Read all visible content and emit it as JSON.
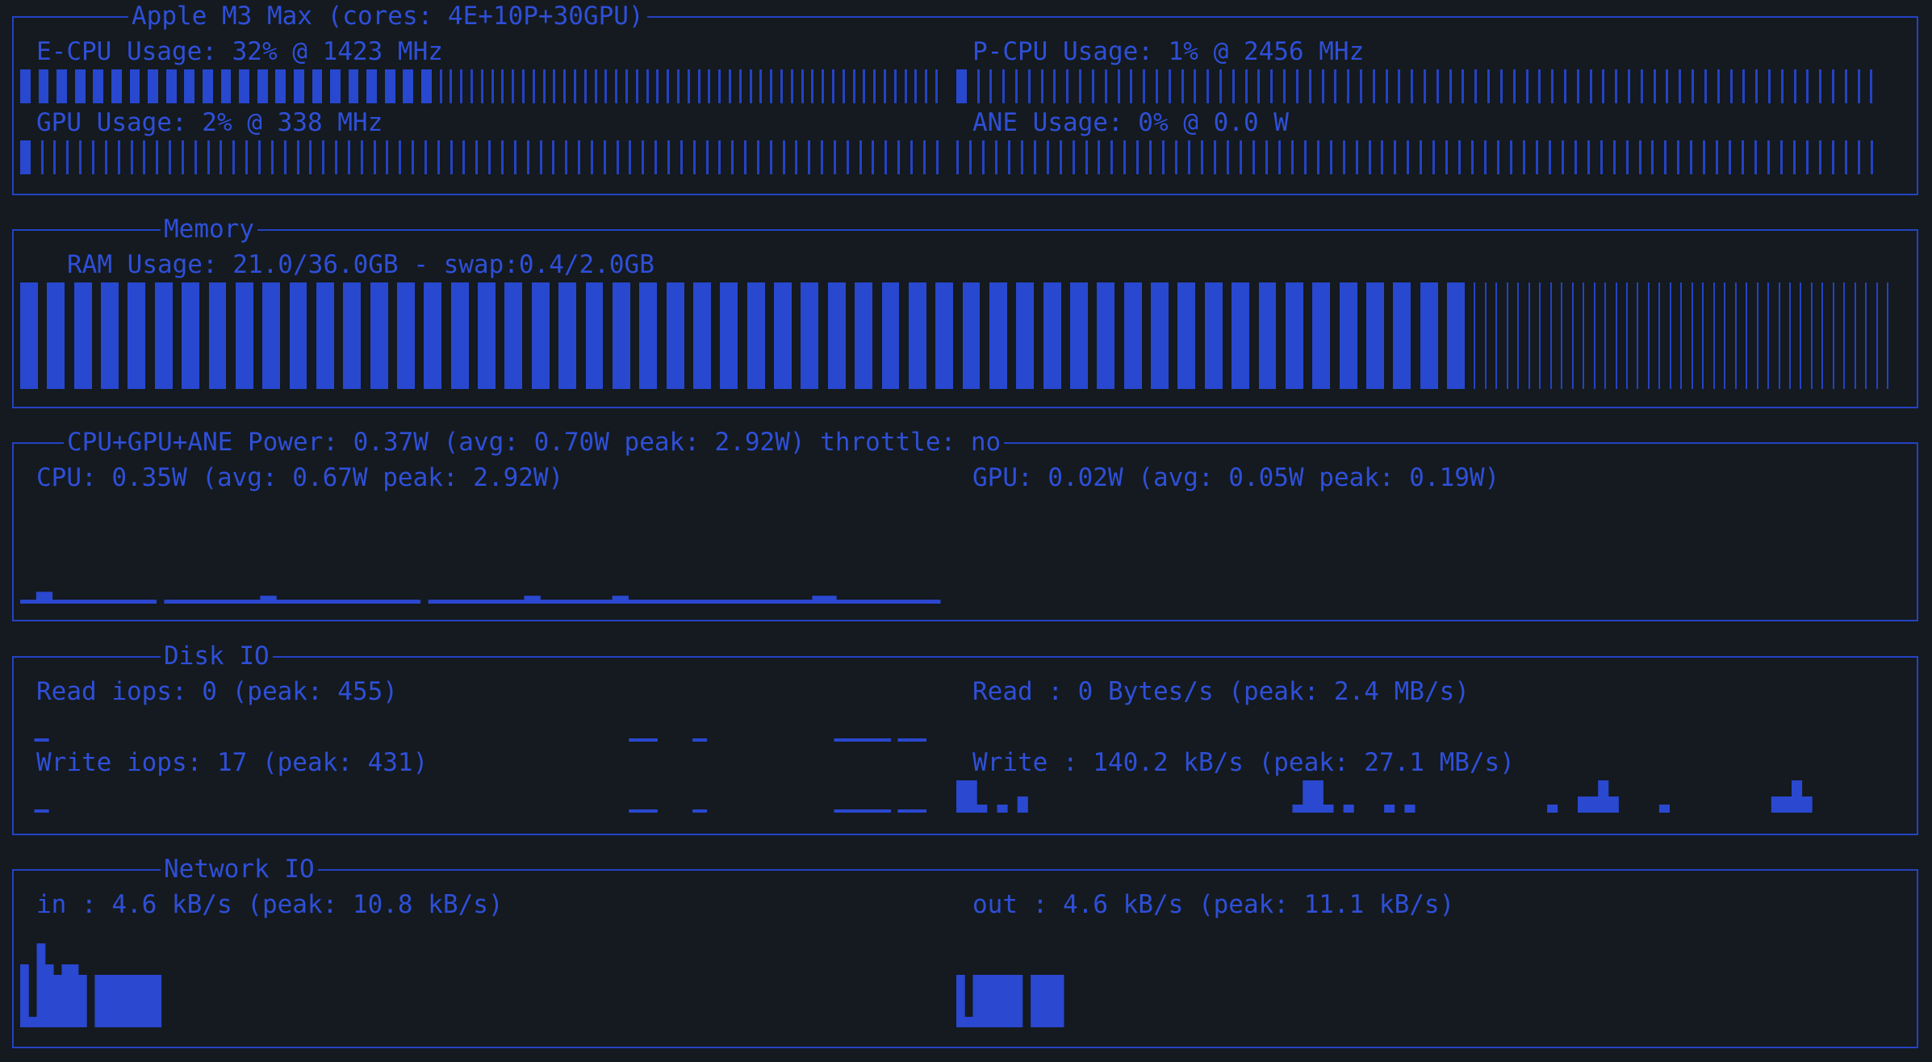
{
  "colors": {
    "background": "#141a1f",
    "accent": "#2a48d0",
    "border": "#2542c4"
  },
  "processor": {
    "title": "Apple M3 Max (cores: 4E+10P+30GPU)",
    "ecpu": {
      "label": "E-CPU Usage: 32% @ 1423 MHz",
      "usage": 0.32
    },
    "pcpu": {
      "label": "P-CPU Usage: 1% @ 2456 MHz",
      "usage": 0.01
    },
    "gpu": {
      "label": "GPU Usage: 2% @ 338 MHz",
      "usage": 0.02
    },
    "ane": {
      "label": "ANE Usage: 0% @ 0.0 W",
      "usage": 0.0
    }
  },
  "memory": {
    "title": "Memory",
    "ram": {
      "label": "RAM Usage: 21.0/36.0GB - swap:0.4/2.0GB",
      "usage": 0.583
    }
  },
  "power": {
    "title": "CPU+GPU+ANE Power: 0.37W (avg: 0.70W peak: 2.92W) throttle: no",
    "cpu": {
      "label": "CPU: 0.35W (avg: 0.67W peak: 2.92W)"
    },
    "gpu": {
      "label": "GPU: 0.02W (avg: 0.05W peak: 0.19W)"
    }
  },
  "disk": {
    "title": "Disk IO",
    "read_iops": {
      "label": "Read iops: 0 (peak: 455)"
    },
    "write_iops": {
      "label": "Write iops: 17 (peak: 431)"
    },
    "read_bw": {
      "label": "Read : 0 Bytes/s (peak: 2.4 MB/s)"
    },
    "write_bw": {
      "label": "Write : 140.2 kB/s (peak: 27.1 MB/s)"
    }
  },
  "network": {
    "title": "Network IO",
    "in": {
      "label": "in : 4.6 kB/s (peak: 10.8 kB/s)"
    },
    "out": {
      "label": "out : 4.6 kB/s (peak: 11.1 kB/s)"
    }
  },
  "series": {
    "cpu_power": [
      1,
      1,
      3,
      3,
      1,
      1,
      1,
      1,
      1,
      1,
      1,
      1,
      1,
      1,
      1,
      1,
      1,
      0,
      1,
      1,
      1,
      1,
      1,
      1,
      1,
      1,
      1,
      1,
      1,
      1,
      2,
      2,
      1,
      1,
      1,
      1,
      1,
      1,
      1,
      1,
      1,
      1,
      1,
      1,
      1,
      1,
      1,
      1,
      1,
      1,
      0,
      1,
      1,
      1,
      1,
      1,
      1,
      1,
      1,
      1,
      1,
      1,
      1,
      2,
      2,
      1,
      1,
      1,
      1,
      1,
      1,
      1,
      1,
      1,
      2,
      2,
      1,
      1,
      1,
      1,
      1,
      1,
      1,
      1,
      1,
      1,
      1,
      1,
      1,
      1,
      1,
      1,
      1,
      1,
      1,
      1,
      1,
      1,
      1,
      2,
      2,
      2,
      1,
      1,
      1,
      1,
      1,
      1,
      1,
      1,
      1,
      1,
      1,
      1,
      1
    ],
    "read_iops": [
      0,
      0,
      1,
      1,
      0,
      0,
      0,
      0,
      0,
      0,
      0,
      0,
      0,
      0,
      0,
      0,
      0,
      0,
      0,
      0,
      0,
      0,
      0,
      0,
      0,
      0,
      0,
      0,
      0,
      0,
      0,
      0,
      0,
      0,
      0,
      0,
      0,
      0,
      0,
      0,
      0,
      0,
      0,
      0,
      0,
      0,
      0,
      0,
      0,
      0,
      0,
      0,
      0,
      0,
      0,
      0,
      0,
      0,
      0,
      0,
      0,
      0,
      0,
      0,
      0,
      0,
      0,
      0,
      0,
      0,
      0,
      0,
      0,
      0,
      0,
      0,
      0,
      0,
      0,
      0,
      0,
      0,
      0,
      0,
      0,
      0,
      1,
      1,
      1,
      1,
      0,
      0,
      0,
      0,
      0,
      1,
      1,
      0,
      0,
      0,
      0,
      0,
      0,
      0,
      0,
      0,
      0,
      0,
      0,
      0,
      0,
      0,
      0,
      0,
      0,
      1,
      1,
      1,
      1,
      1,
      1,
      1,
      1,
      0,
      1,
      1,
      1,
      1,
      0,
      0
    ],
    "write_iops": [
      0,
      0,
      1,
      1,
      0,
      0,
      0,
      0,
      0,
      0,
      0,
      0,
      0,
      0,
      0,
      0,
      0,
      0,
      0,
      0,
      0,
      0,
      0,
      0,
      0,
      0,
      0,
      0,
      0,
      0,
      0,
      0,
      0,
      0,
      0,
      0,
      0,
      0,
      0,
      0,
      0,
      0,
      0,
      0,
      0,
      0,
      0,
      0,
      0,
      0,
      0,
      0,
      0,
      0,
      0,
      0,
      0,
      0,
      0,
      0,
      0,
      0,
      0,
      0,
      0,
      0,
      0,
      0,
      0,
      0,
      0,
      0,
      0,
      0,
      0,
      0,
      0,
      0,
      0,
      0,
      0,
      0,
      0,
      0,
      0,
      0,
      1,
      1,
      1,
      1,
      0,
      0,
      0,
      0,
      0,
      1,
      1,
      0,
      0,
      0,
      0,
      0,
      0,
      0,
      0,
      0,
      0,
      0,
      0,
      0,
      0,
      0,
      0,
      0,
      0,
      1,
      1,
      1,
      1,
      1,
      1,
      1,
      1,
      0,
      1,
      1,
      1,
      1,
      0,
      0
    ],
    "read_bw": [
      0,
      0,
      0,
      0,
      0,
      0,
      0,
      0,
      0,
      0,
      0,
      0,
      0,
      0,
      0,
      0,
      0,
      0,
      0,
      0,
      0,
      0,
      0,
      0,
      0,
      0,
      0,
      0,
      0,
      0,
      0,
      0,
      0,
      0,
      0,
      0,
      0,
      0,
      0,
      0,
      0,
      0,
      0,
      0,
      0,
      0,
      0,
      0,
      0,
      0,
      0,
      0,
      0,
      0,
      0,
      0,
      0,
      0,
      0,
      0,
      0,
      0,
      0,
      0,
      0,
      0,
      0,
      0,
      0,
      0,
      0,
      0,
      0,
      0,
      0,
      0,
      0,
      0,
      0,
      0,
      0,
      0,
      0,
      0,
      0,
      0,
      0,
      0,
      0,
      0,
      0,
      0,
      0,
      0,
      0,
      0,
      0,
      0,
      0,
      0,
      0,
      0,
      0,
      0,
      0,
      0,
      0,
      0,
      0,
      0,
      0,
      0,
      0,
      0,
      0,
      0
    ],
    "write_bw": [
      4,
      4,
      1,
      0,
      1,
      0,
      2,
      0,
      0,
      0,
      0,
      0,
      0,
      0,
      0,
      0,
      0,
      0,
      0,
      0,
      0,
      0,
      0,
      0,
      0,
      0,
      0,
      0,
      0,
      0,
      0,
      0,
      0,
      1,
      4,
      4,
      1,
      0,
      1,
      0,
      0,
      0,
      1,
      0,
      1,
      0,
      0,
      0,
      0,
      0,
      0,
      0,
      0,
      0,
      0,
      0,
      0,
      0,
      1,
      0,
      0,
      2,
      2,
      4,
      2,
      0,
      0,
      0,
      0,
      1,
      0,
      0,
      0,
      0,
      0,
      0,
      0,
      0,
      0,
      0,
      2,
      2,
      4,
      2,
      0,
      0,
      0,
      0,
      0,
      0
    ],
    "net_in": [
      6,
      1,
      8,
      6,
      5,
      6,
      6,
      5,
      0,
      5,
      5,
      5,
      5,
      5,
      5,
      5,
      5,
      0,
      0,
      0,
      0,
      0,
      0,
      0,
      0,
      0,
      0,
      0,
      0,
      0,
      0,
      0,
      0,
      0,
      0,
      0,
      0,
      0,
      0,
      0,
      0,
      0,
      0,
      0,
      0,
      0,
      0,
      0,
      0,
      0,
      0,
      0,
      0,
      0,
      0,
      0,
      0,
      0,
      0,
      0,
      0,
      0,
      0,
      0,
      0,
      0,
      0,
      0,
      0,
      0,
      0,
      0,
      0,
      0,
      0,
      0,
      0,
      0,
      0,
      0,
      0,
      0,
      0,
      0,
      0,
      0,
      0,
      0,
      0,
      0,
      0,
      0,
      0,
      0,
      0,
      0,
      0,
      0,
      0,
      0,
      0,
      0,
      0,
      0,
      0,
      0,
      0,
      0,
      0,
      0,
      0
    ],
    "net_out": [
      5,
      1,
      5,
      5,
      5,
      5,
      5,
      5,
      0,
      5,
      5,
      5,
      5,
      0,
      0,
      0,
      0,
      0,
      0,
      0,
      0,
      0,
      0,
      0,
      0,
      0,
      0,
      0,
      0,
      0,
      0,
      0,
      0,
      0,
      0,
      0,
      0,
      0,
      0,
      0,
      0,
      0,
      0,
      0,
      0,
      0,
      0,
      0,
      0,
      0,
      0,
      0,
      0,
      0,
      0,
      0,
      0,
      0,
      0,
      0,
      0,
      0,
      0,
      0,
      0,
      0,
      0,
      0,
      0,
      0,
      0,
      0,
      0,
      0,
      0,
      0,
      0,
      0,
      0,
      0,
      0,
      0,
      0,
      0,
      0,
      0,
      0,
      0,
      0,
      0,
      0,
      0,
      0,
      0,
      0,
      0,
      0,
      0,
      0,
      0,
      0,
      0,
      0,
      0,
      0,
      0,
      0,
      0,
      0,
      0,
      0
    ]
  }
}
